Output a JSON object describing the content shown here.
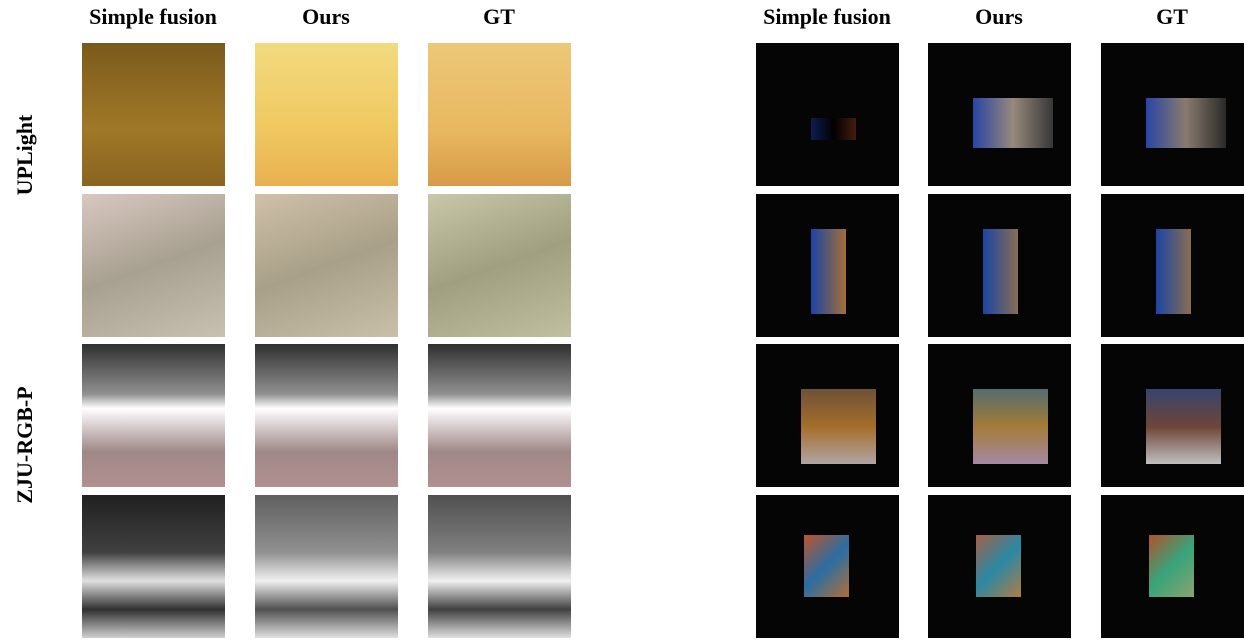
{
  "column_headers_left": [
    "Simple fusion",
    "Ours",
    "GT"
  ],
  "column_headers_right": [
    "Simple fusion",
    "Ours",
    "GT"
  ],
  "row_labels": [
    "UPLight",
    "ZJU-RGB-P"
  ]
}
